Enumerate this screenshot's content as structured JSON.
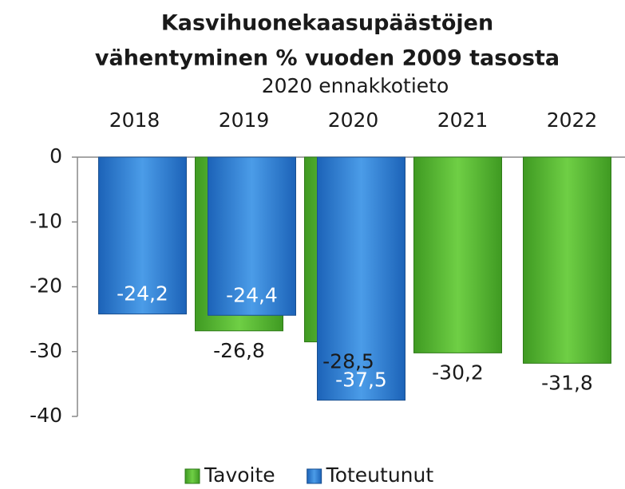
{
  "chart_data": {
    "type": "bar",
    "title": "Kasvihuonekaasupäästöjen",
    "title_line2": "vähentyminen % vuoden 2009 tasosta",
    "subtitle": "2020 ennakkotieto",
    "categories": [
      "2018",
      "2019",
      "2020",
      "2021",
      "2022"
    ],
    "series": [
      {
        "name": "Tavoite",
        "color": "#5ab534",
        "values": [
          null,
          -26.8,
          -28.5,
          -30.2,
          -31.8
        ],
        "value_labels": [
          null,
          "-26,8",
          "-28,5",
          "-30,2",
          "-31,8"
        ]
      },
      {
        "name": "Toteutunut",
        "color": "#2f7fd8",
        "values": [
          -24.2,
          -24.4,
          -37.5,
          null,
          null
        ],
        "value_labels": [
          "-24,2",
          "-24,4",
          "-37,5",
          null,
          null
        ]
      }
    ],
    "ylim": [
      -40,
      0
    ],
    "yticks": [
      0,
      -10,
      -20,
      -30,
      -40
    ],
    "legend": "bottom"
  }
}
